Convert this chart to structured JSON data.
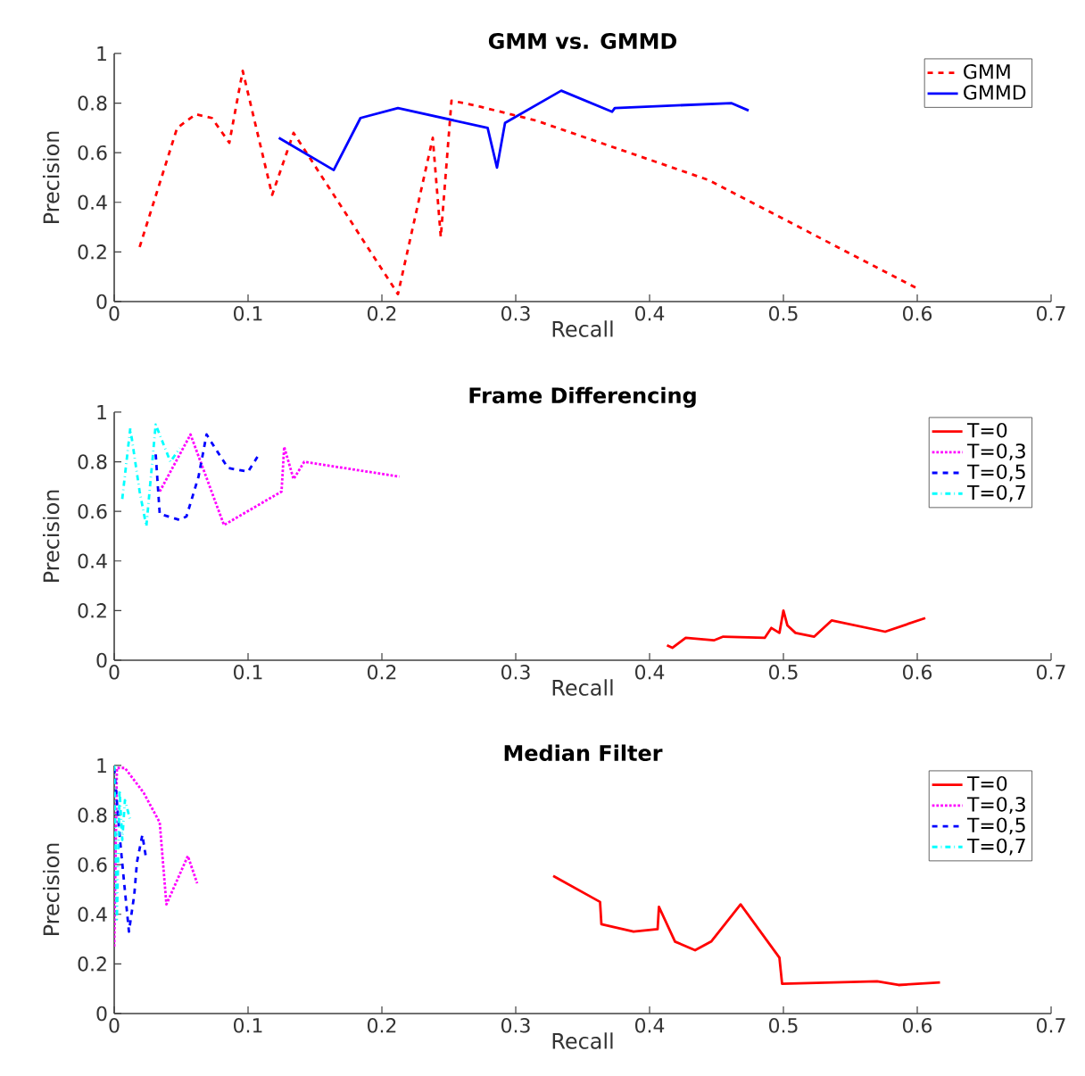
{
  "chart_data": [
    {
      "type": "line",
      "title": "GMM vs. GMMD",
      "xlabel": "Recall",
      "ylabel": "Precision",
      "xlim": [
        0,
        0.7
      ],
      "ylim": [
        0,
        1
      ],
      "xticks": [
        0,
        0.1,
        0.2,
        0.3,
        0.4,
        0.5,
        0.6,
        0.7
      ],
      "yticks": [
        0,
        0.2,
        0.4,
        0.6,
        0.8,
        1
      ],
      "legend": "top right",
      "grid": false,
      "series": [
        {
          "name": "GMM",
          "color": "#ff0000",
          "line_style": "dashed",
          "x": [
            0.019,
            0.047,
            0.061,
            0.073,
            0.086,
            0.096,
            0.118,
            0.134,
            0.212,
            0.238,
            0.244,
            0.252,
            0.27,
            0.315,
            0.444,
            0.601
          ],
          "values": [
            0.22,
            0.7,
            0.755,
            0.74,
            0.64,
            0.93,
            0.43,
            0.68,
            0.03,
            0.66,
            0.26,
            0.81,
            0.79,
            0.73,
            0.49,
            0.05
          ]
        },
        {
          "name": "GMMD",
          "color": "#0000ff",
          "line_style": "solid",
          "x": [
            0.123,
            0.164,
            0.184,
            0.212,
            0.279,
            0.286,
            0.292,
            0.334,
            0.372,
            0.374,
            0.461,
            0.474
          ],
          "values": [
            0.66,
            0.53,
            0.74,
            0.78,
            0.7,
            0.54,
            0.72,
            0.85,
            0.765,
            0.78,
            0.8,
            0.77
          ]
        }
      ]
    },
    {
      "type": "line",
      "title": "Frame Differencing",
      "xlabel": "Recall",
      "ylabel": "Precision",
      "xlim": [
        0,
        0.7
      ],
      "ylim": [
        0,
        1
      ],
      "xticks": [
        0,
        0.1,
        0.2,
        0.3,
        0.4,
        0.5,
        0.6,
        0.7
      ],
      "yticks": [
        0,
        0.2,
        0.4,
        0.6,
        0.8,
        1
      ],
      "legend": "top right",
      "grid": false,
      "series": [
        {
          "name": "T=0",
          "color": "#ff0000",
          "line_style": "solid",
          "x": [
            0.413,
            0.417,
            0.427,
            0.448,
            0.455,
            0.486,
            0.491,
            0.497,
            0.5,
            0.503,
            0.509,
            0.523,
            0.536,
            0.576,
            0.606
          ],
          "values": [
            0.06,
            0.05,
            0.09,
            0.08,
            0.095,
            0.09,
            0.13,
            0.11,
            0.2,
            0.14,
            0.11,
            0.095,
            0.16,
            0.115,
            0.17
          ]
        },
        {
          "name": "T=0,3",
          "color": "#ff00ff",
          "line_style": "dotted",
          "x": [
            0.034,
            0.057,
            0.082,
            0.125,
            0.127,
            0.134,
            0.142,
            0.213
          ],
          "values": [
            0.68,
            0.91,
            0.545,
            0.68,
            0.86,
            0.73,
            0.8,
            0.74
          ]
        },
        {
          "name": "T=0,5",
          "color": "#0000ff",
          "line_style": "dashed",
          "x": [
            0.031,
            0.034,
            0.049,
            0.054,
            0.063,
            0.069,
            0.076,
            0.085,
            0.1,
            0.107
          ],
          "values": [
            0.83,
            0.59,
            0.565,
            0.58,
            0.74,
            0.91,
            0.85,
            0.775,
            0.76,
            0.82
          ]
        },
        {
          "name": "T=0,7",
          "color": "#00ffff",
          "line_style": "dashdot",
          "x": [
            0.006,
            0.012,
            0.019,
            0.024,
            0.031,
            0.042,
            0.049
          ],
          "values": [
            0.65,
            0.935,
            0.68,
            0.54,
            0.95,
            0.8,
            0.855
          ]
        }
      ]
    },
    {
      "type": "line",
      "title": "Median Filter",
      "xlabel": "Recall",
      "ylabel": "Precision",
      "xlim": [
        0,
        0.7
      ],
      "ylim": [
        0,
        1
      ],
      "xticks": [
        0,
        0.1,
        0.2,
        0.3,
        0.4,
        0.5,
        0.6,
        0.7
      ],
      "yticks": [
        0,
        0.2,
        0.4,
        0.6,
        0.8,
        1
      ],
      "legend": "top right",
      "grid": false,
      "series": [
        {
          "name": "T=0",
          "color": "#ff0000",
          "line_style": "solid",
          "x": [
            0.328,
            0.363,
            0.364,
            0.388,
            0.406,
            0.407,
            0.419,
            0.434,
            0.446,
            0.468,
            0.497,
            0.499,
            0.57,
            0.586,
            0.617
          ],
          "values": [
            0.555,
            0.45,
            0.36,
            0.33,
            0.34,
            0.43,
            0.29,
            0.255,
            0.29,
            0.44,
            0.225,
            0.12,
            0.13,
            0.115,
            0.125
          ]
        },
        {
          "name": "T=0,3",
          "color": "#ff00ff",
          "line_style": "dotted",
          "x": [
            0.0,
            0.002,
            0.008,
            0.022,
            0.034,
            0.039,
            0.055,
            0.062
          ],
          "values": [
            0.27,
            0.99,
            0.99,
            0.89,
            0.77,
            0.44,
            0.635,
            0.525
          ]
        },
        {
          "name": "T=0,5",
          "color": "#0000ff",
          "line_style": "dashed",
          "x": [
            0.0,
            0.004,
            0.007,
            0.011,
            0.015,
            0.017,
            0.021,
            0.024
          ],
          "values": [
            0.99,
            0.72,
            0.55,
            0.33,
            0.48,
            0.61,
            0.72,
            0.62
          ]
        },
        {
          "name": "T=0,7",
          "color": "#00ffff",
          "line_style": "dashdot",
          "x": [
            0.0,
            0.002,
            0.004,
            0.006,
            0.008,
            0.012
          ],
          "values": [
            1.0,
            0.38,
            0.9,
            0.7,
            0.86,
            0.78
          ]
        }
      ]
    }
  ]
}
